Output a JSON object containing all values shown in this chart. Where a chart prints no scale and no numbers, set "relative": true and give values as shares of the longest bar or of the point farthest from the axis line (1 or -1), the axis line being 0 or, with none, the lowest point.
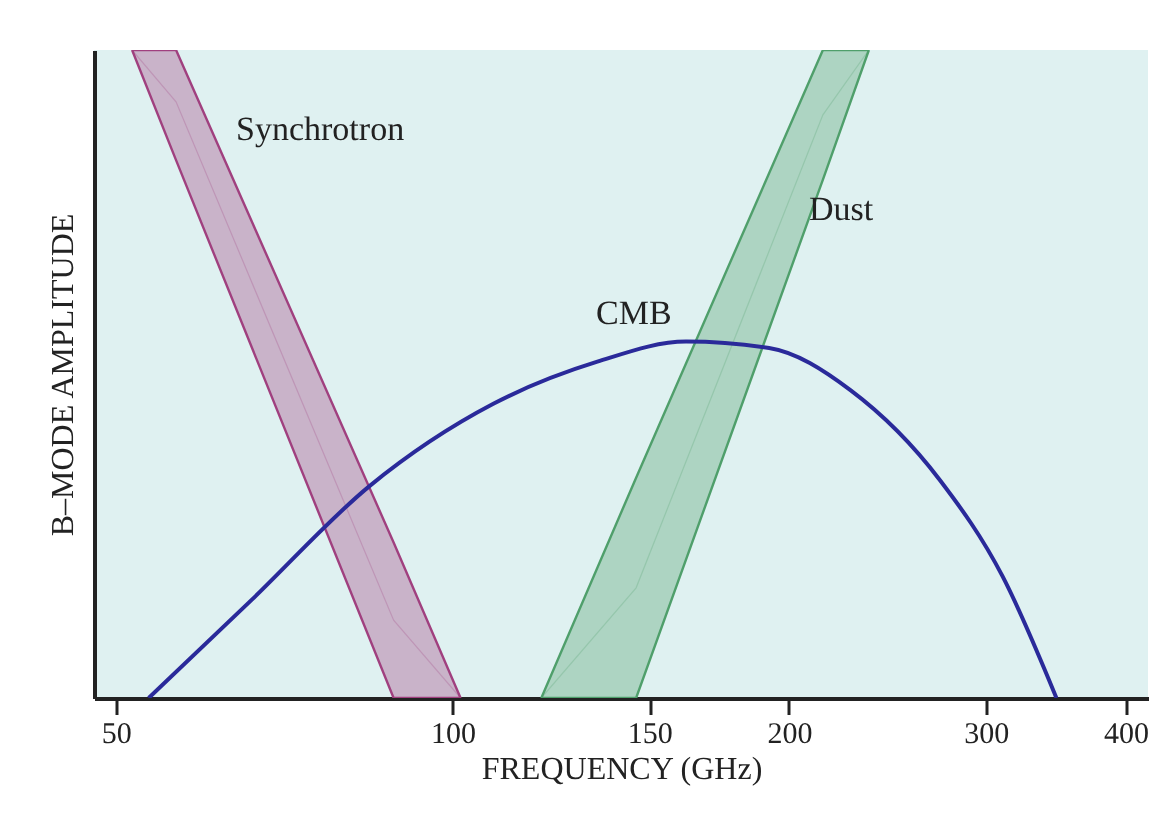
{
  "chart_data": {
    "type": "line",
    "relative": true,
    "log": "x",
    "grid": false,
    "tick_labels": "x",
    "xlabel": "FREQUENCY (GHz)",
    "ylabel": "B–MODE AMPLITUDE",
    "xlim": [
      47.8,
      419
    ],
    "xticks": [
      50,
      100,
      150,
      200,
      300,
      400
    ],
    "series": [
      {
        "name": "Synchrotron",
        "color": "#a0407f",
        "x": [
          51.7,
          56.6,
          88.6,
          101.7
        ],
        "values": [
          1,
          0.92,
          0.12,
          0
        ],
        "lower": [
          1,
          0.83,
          0,
          0
        ],
        "upper": [
          1,
          1,
          0.24,
          0
        ]
      },
      {
        "name": "Dust",
        "color": "#4f9f6b",
        "x": [
          120.1,
          146,
          214.5,
          235.8
        ],
        "values": [
          0,
          0.17,
          0.9,
          1
        ],
        "lower": [
          0,
          0,
          0.8,
          1
        ],
        "upper": [
          0,
          0.34,
          1,
          1
        ]
      },
      {
        "name": "CMB",
        "color": "#2a2a9a",
        "x": [
          53.5,
          66.1,
          84.3,
          108.8,
          134.8,
          161.8,
          192,
          227,
          273,
          310.5,
          347
        ],
        "values": [
          0,
          0.151,
          0.327,
          0.454,
          0.519,
          0.55,
          0.54,
          0.475,
          0.336,
          0.188,
          0
        ]
      }
    ]
  }
}
